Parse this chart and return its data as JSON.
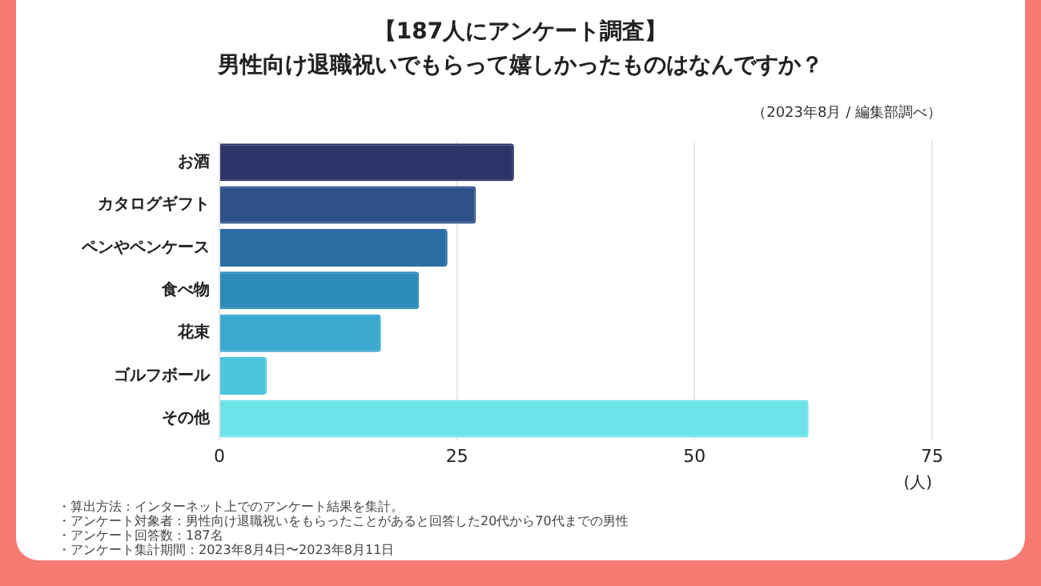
{
  "chart_data": {
    "type": "bar",
    "orientation": "horizontal",
    "title": "【187人にアンケート調査】",
    "subtitle": "男性向け退職祝いでもらって嬉しかったものはなんですか？",
    "categories": [
      "お酒",
      "カタログギフト",
      "ペンやペンケース",
      "食べ物",
      "花束",
      "ゴルフボール",
      "その他"
    ],
    "values": [
      31,
      27,
      24,
      21,
      17,
      5,
      62
    ],
    "colors": [
      "#2e3369",
      "#2e5189",
      "#2c6ea4",
      "#2b8cbb",
      "#3aa9cf",
      "#4bc6dd",
      "#6be3e8"
    ],
    "xlim": [
      0,
      75
    ],
    "xticks": [
      0,
      25,
      50,
      75
    ],
    "xlabel": "(人)",
    "grid": "x",
    "legend": false,
    "annotations": [
      "（2023年8月 / 編集部調べ）",
      "・算出方法：インターネット上でのアンケート結果を集計。",
      "・アンケート対象者：男性向け退職祝いをもらったことがあると回答した20代から70代までの男性",
      "・アンケート回答数：187名",
      "・アンケート集計期間：2023年8月4日〜2023年8月11日"
    ]
  }
}
